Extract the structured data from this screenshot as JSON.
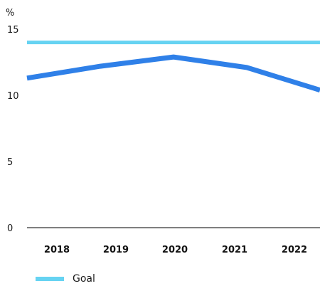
{
  "chart_data": {
    "type": "line",
    "ylabel": "%",
    "categories": [
      "2018",
      "2019",
      "2020",
      "2021",
      "2022"
    ],
    "yticks": [
      0,
      5,
      10,
      15
    ],
    "ylim": [
      0,
      15
    ],
    "grid": false,
    "series": [
      {
        "name": "",
        "color": "#2f80e8",
        "values": [
          11.3,
          12.2,
          12.9,
          12.1,
          10.4
        ]
      },
      {
        "name": "Goal",
        "color": "#66d3f2",
        "values": [
          14,
          14,
          14,
          14,
          14
        ]
      }
    ],
    "legend": {
      "position": "bottom-left",
      "entries": [
        {
          "label": "Goal",
          "color": "#66d3f2"
        }
      ]
    }
  }
}
